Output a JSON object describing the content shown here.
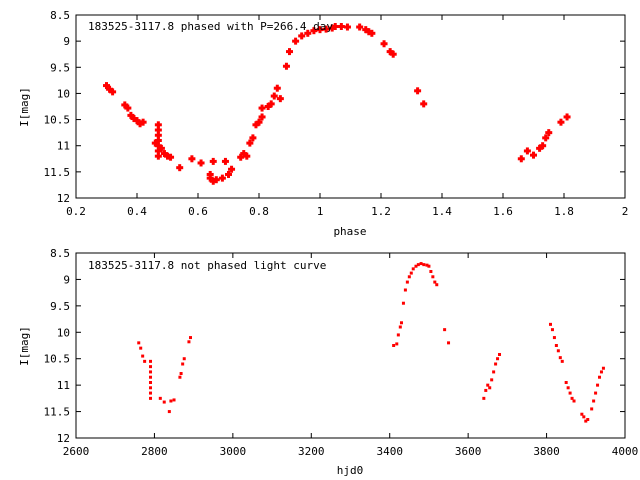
{
  "colors": {
    "series": "#ff0000",
    "axes": "#000000",
    "background": "#ffffff"
  },
  "chart_data": [
    {
      "type": "scatter",
      "title": "183525-3117.8 phased with P=266.4 day",
      "xlabel": "phase",
      "ylabel": "I[mag]",
      "xlim": [
        0.2,
        2
      ],
      "ylim": [
        8.5,
        12
      ],
      "y_inverted": true,
      "grid": false,
      "x_ticks": [
        "0.2",
        "0.4",
        "0.6",
        "0.8",
        "1",
        "1.2",
        "1.4",
        "1.6",
        "1.8",
        "2"
      ],
      "y_ticks": [
        "8.5",
        "9",
        "9.5",
        "10",
        "10.5",
        "11",
        "11.5",
        "12"
      ],
      "marker": "plus",
      "series": [
        {
          "points": [
            [
              0.3,
              9.85
            ],
            [
              0.31,
              9.92
            ],
            [
              0.32,
              9.97
            ],
            [
              0.36,
              10.22
            ],
            [
              0.37,
              10.28
            ],
            [
              0.38,
              10.42
            ],
            [
              0.39,
              10.48
            ],
            [
              0.4,
              10.52
            ],
            [
              0.41,
              10.58
            ],
            [
              0.42,
              10.55
            ],
            [
              0.46,
              10.95
            ],
            [
              0.47,
              10.6
            ],
            [
              0.47,
              10.7
            ],
            [
              0.47,
              10.8
            ],
            [
              0.47,
              10.9
            ],
            [
              0.47,
              11.0
            ],
            [
              0.47,
              11.1
            ],
            [
              0.47,
              11.2
            ],
            [
              0.48,
              11.05
            ],
            [
              0.49,
              11.15
            ],
            [
              0.5,
              11.2
            ],
            [
              0.51,
              11.22
            ],
            [
              0.54,
              11.42
            ],
            [
              0.58,
              11.25
            ],
            [
              0.61,
              11.33
            ],
            [
              0.64,
              11.55
            ],
            [
              0.64,
              11.62
            ],
            [
              0.65,
              11.68
            ],
            [
              0.65,
              11.3
            ],
            [
              0.66,
              11.65
            ],
            [
              0.68,
              11.62
            ],
            [
              0.69,
              11.3
            ],
            [
              0.7,
              11.55
            ],
            [
              0.71,
              11.45
            ],
            [
              0.74,
              11.22
            ],
            [
              0.75,
              11.15
            ],
            [
              0.76,
              11.2
            ],
            [
              0.77,
              10.95
            ],
            [
              0.78,
              10.85
            ],
            [
              0.79,
              10.6
            ],
            [
              0.8,
              10.55
            ],
            [
              0.81,
              10.45
            ],
            [
              0.81,
              10.28
            ],
            [
              0.83,
              10.25
            ],
            [
              0.84,
              10.2
            ],
            [
              0.85,
              10.05
            ],
            [
              0.86,
              9.9
            ],
            [
              0.87,
              10.1
            ],
            [
              0.89,
              9.48
            ],
            [
              0.9,
              9.2
            ],
            [
              0.92,
              9.0
            ],
            [
              0.94,
              8.9
            ],
            [
              0.96,
              8.85
            ],
            [
              0.98,
              8.8
            ],
            [
              1.0,
              8.78
            ],
            [
              1.02,
              8.77
            ],
            [
              1.04,
              8.75
            ],
            [
              1.05,
              8.72
            ],
            [
              1.07,
              8.72
            ],
            [
              1.09,
              8.73
            ],
            [
              1.13,
              8.73
            ],
            [
              1.15,
              8.78
            ],
            [
              1.16,
              8.82
            ],
            [
              1.17,
              8.85
            ],
            [
              1.21,
              9.05
            ],
            [
              1.23,
              9.2
            ],
            [
              1.24,
              9.25
            ],
            [
              1.32,
              9.95
            ],
            [
              1.34,
              10.2
            ],
            [
              1.66,
              11.25
            ],
            [
              1.68,
              11.1
            ],
            [
              1.7,
              11.18
            ],
            [
              1.72,
              11.05
            ],
            [
              1.73,
              11.0
            ],
            [
              1.74,
              10.85
            ],
            [
              1.75,
              10.75
            ],
            [
              1.79,
              10.55
            ],
            [
              1.81,
              10.45
            ]
          ]
        }
      ]
    },
    {
      "type": "scatter",
      "title": "183525-3117.8 not phased light curve",
      "xlabel": "hjd0",
      "ylabel": "I[mag]",
      "xlim": [
        2600,
        4000
      ],
      "ylim": [
        8.5,
        12
      ],
      "y_inverted": true,
      "grid": false,
      "x_ticks": [
        "2600",
        "2800",
        "3000",
        "3200",
        "3400",
        "3600",
        "3800",
        "4000"
      ],
      "y_ticks": [
        "8.5",
        "9",
        "9.5",
        "10",
        "10.5",
        "11",
        "11.5",
        "12"
      ],
      "marker": "dot",
      "series": [
        {
          "points": [
            [
              2760,
              10.2
            ],
            [
              2765,
              10.3
            ],
            [
              2770,
              10.45
            ],
            [
              2775,
              10.55
            ],
            [
              2790,
              10.55
            ],
            [
              2790,
              10.65
            ],
            [
              2790,
              10.75
            ],
            [
              2790,
              10.85
            ],
            [
              2790,
              10.95
            ],
            [
              2790,
              11.05
            ],
            [
              2790,
              11.15
            ],
            [
              2790,
              11.25
            ],
            [
              2815,
              11.25
            ],
            [
              2825,
              11.32
            ],
            [
              2838,
              11.5
            ],
            [
              2842,
              11.3
            ],
            [
              2850,
              11.28
            ],
            [
              2865,
              10.85
            ],
            [
              2868,
              10.78
            ],
            [
              2872,
              10.6
            ],
            [
              2876,
              10.5
            ],
            [
              2888,
              10.18
            ],
            [
              2892,
              10.1
            ],
            [
              3410,
              10.25
            ],
            [
              3418,
              10.22
            ],
            [
              3422,
              10.05
            ],
            [
              3427,
              9.9
            ],
            [
              3430,
              9.82
            ],
            [
              3435,
              9.45
            ],
            [
              3440,
              9.2
            ],
            [
              3445,
              9.05
            ],
            [
              3450,
              8.95
            ],
            [
              3455,
              8.88
            ],
            [
              3460,
              8.8
            ],
            [
              3467,
              8.75
            ],
            [
              3473,
              8.72
            ],
            [
              3480,
              8.7
            ],
            [
              3487,
              8.72
            ],
            [
              3495,
              8.73
            ],
            [
              3500,
              8.75
            ],
            [
              3505,
              8.85
            ],
            [
              3510,
              8.95
            ],
            [
              3515,
              9.05
            ],
            [
              3520,
              9.1
            ],
            [
              3540,
              9.95
            ],
            [
              3550,
              10.2
            ],
            [
              3640,
              11.25
            ],
            [
              3645,
              11.1
            ],
            [
              3650,
              11.0
            ],
            [
              3655,
              11.05
            ],
            [
              3660,
              10.9
            ],
            [
              3665,
              10.75
            ],
            [
              3670,
              10.6
            ],
            [
              3675,
              10.5
            ],
            [
              3680,
              10.42
            ],
            [
              3810,
              9.85
            ],
            [
              3815,
              9.95
            ],
            [
              3820,
              10.1
            ],
            [
              3825,
              10.25
            ],
            [
              3830,
              10.35
            ],
            [
              3835,
              10.48
            ],
            [
              3840,
              10.55
            ],
            [
              3850,
              10.95
            ],
            [
              3855,
              11.05
            ],
            [
              3860,
              11.15
            ],
            [
              3865,
              11.25
            ],
            [
              3870,
              11.3
            ],
            [
              3890,
              11.55
            ],
            [
              3895,
              11.6
            ],
            [
              3900,
              11.68
            ],
            [
              3905,
              11.65
            ],
            [
              3915,
              11.45
            ],
            [
              3920,
              11.3
            ],
            [
              3925,
              11.15
            ],
            [
              3930,
              11.0
            ],
            [
              3935,
              10.85
            ],
            [
              3940,
              10.75
            ],
            [
              3945,
              10.68
            ]
          ]
        }
      ]
    }
  ]
}
